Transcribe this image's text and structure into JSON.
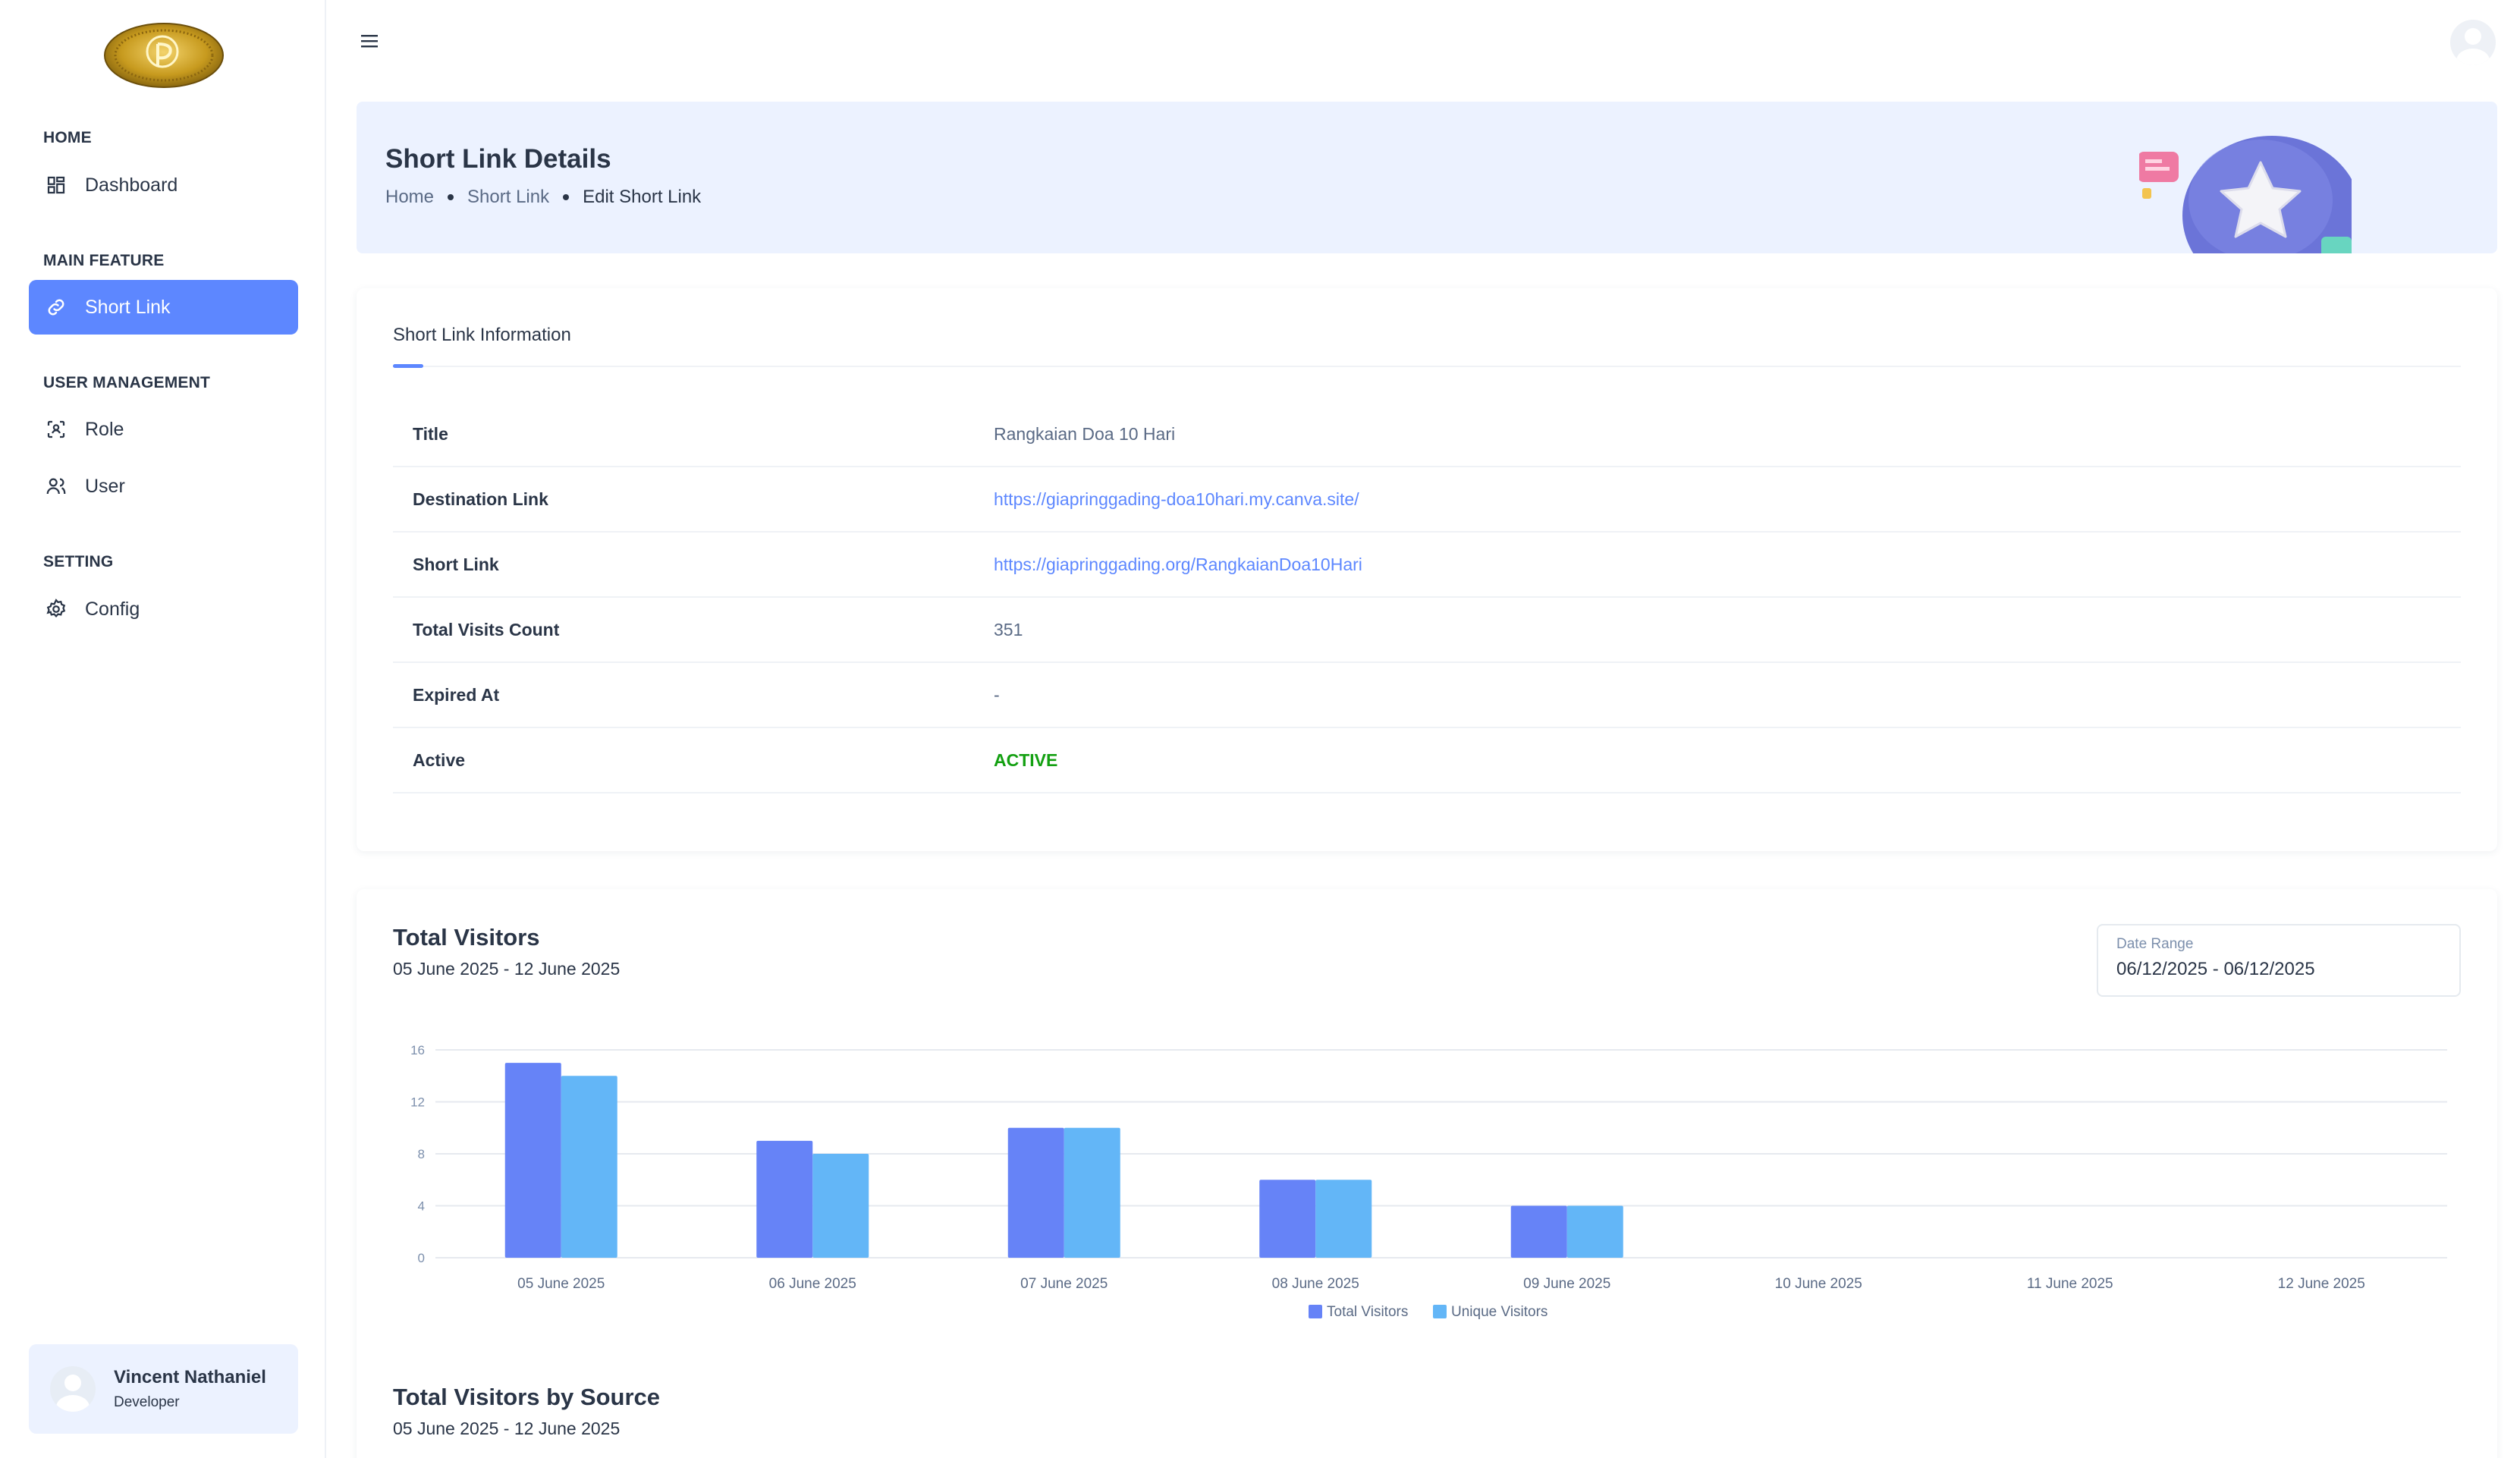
{
  "sidebar": {
    "sections": [
      {
        "title": "HOME",
        "items": [
          {
            "label": "Dashboard",
            "icon": "dashboard-icon"
          }
        ]
      },
      {
        "title": "MAIN FEATURE",
        "items": [
          {
            "label": "Short Link",
            "icon": "link-icon",
            "active": true
          }
        ]
      },
      {
        "title": "USER MANAGEMENT",
        "items": [
          {
            "label": "Role",
            "icon": "role-icon"
          },
          {
            "label": "User",
            "icon": "users-icon"
          }
        ]
      },
      {
        "title": "SETTING",
        "items": [
          {
            "label": "Config",
            "icon": "gear-icon"
          }
        ]
      }
    ],
    "profile": {
      "name": "Vincent Nathaniel",
      "role": "Developer"
    }
  },
  "header": {
    "title": "Short Link Details",
    "breadcrumb": [
      "Home",
      "Short Link",
      "Edit Short Link"
    ]
  },
  "info": {
    "tab": "Short Link Information",
    "rows": [
      {
        "key": "Title",
        "value": "Rangkaian Doa 10 Hari",
        "style": "text"
      },
      {
        "key": "Destination Link",
        "value": "https://giapringgading-doa10hari.my.canva.site/",
        "style": "link"
      },
      {
        "key": "Short Link",
        "value": "https://giapringgading.org/RangkaianDoa10Hari",
        "style": "link"
      },
      {
        "key": "Total Visits Count",
        "value": "351",
        "style": "text"
      },
      {
        "key": "Expired At",
        "value": "-",
        "style": "text"
      },
      {
        "key": "Active",
        "value": "ACTIVE",
        "style": "active"
      }
    ]
  },
  "visitors": {
    "title": "Total Visitors",
    "subtitle": "05 June 2025 - 12 June 2025",
    "date_range_label": "Date Range",
    "date_range_value": "06/12/2025 - 06/12/2025"
  },
  "by_source": {
    "title": "Total Visitors by Source",
    "subtitle": "05 June 2025 - 12 June 2025"
  },
  "colors": {
    "accent": "#5d87ff",
    "series1": "#6683f7",
    "series2": "#63b6f7",
    "active": "#13a011"
  },
  "chart_data": {
    "type": "bar",
    "categories": [
      "05 June 2025",
      "06 June 2025",
      "07 June 2025",
      "08 June 2025",
      "09 June 2025",
      "10 June 2025",
      "11 June 2025",
      "12 June 2025"
    ],
    "series": [
      {
        "name": "Total Visitors",
        "values": [
          15,
          9,
          10,
          6,
          4,
          0,
          0,
          0
        ]
      },
      {
        "name": "Unique Visitors",
        "values": [
          14,
          8,
          10,
          6,
          4,
          0,
          0,
          0
        ]
      }
    ],
    "yticks": [
      "0",
      "4",
      "8",
      "12",
      "16"
    ],
    "ylim": [
      0,
      16
    ],
    "legend": "bottom-center",
    "grid": true
  }
}
